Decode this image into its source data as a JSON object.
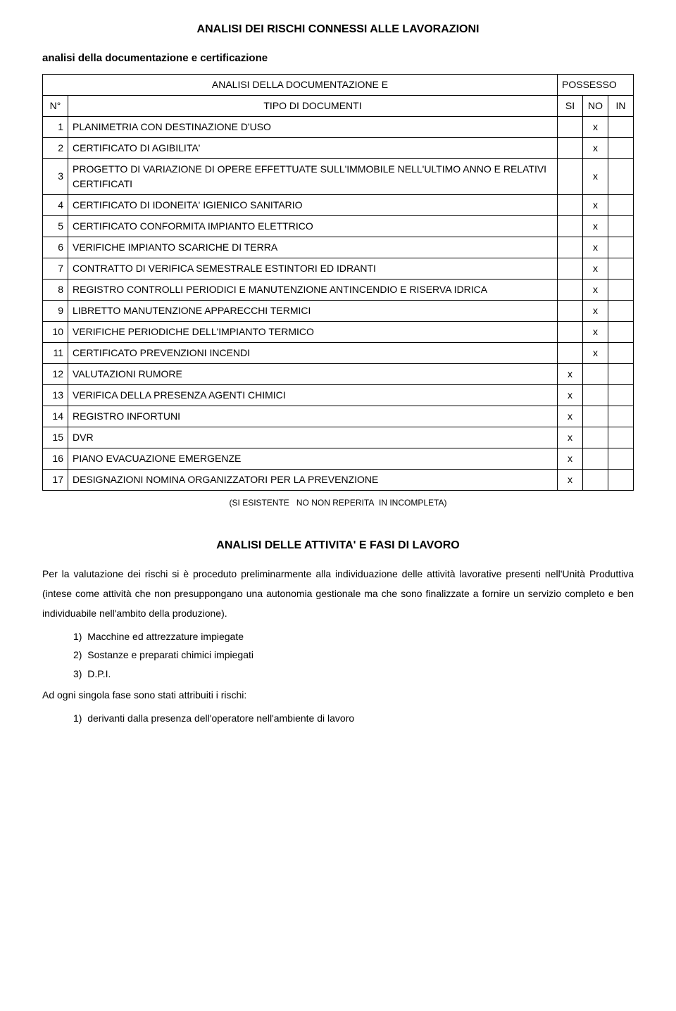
{
  "main_title": "ANALISI DEI RISCHI CONNESSI ALLE LAVORAZIONI",
  "subtitle": "analisi della documentazione e certificazione",
  "table": {
    "header_analisi": "ANALISI DELLA DOCUMENTAZIONE E",
    "header_possesso": "POSSESSO",
    "header_n": "N°",
    "header_tipo": "TIPO DI DOCUMENTI",
    "header_si": "SI",
    "header_no": "NO",
    "header_in": "IN",
    "rows": [
      {
        "n": "1",
        "desc": "PLANIMETRIA CON DESTINAZIONE D'USO",
        "si": "",
        "no": "x",
        "in": ""
      },
      {
        "n": "2",
        "desc": "CERTIFICATO DI AGIBILITA'",
        "si": "",
        "no": "x",
        "in": ""
      },
      {
        "n": "3",
        "desc": "PROGETTO DI VARIAZIONE DI OPERE EFFETTUATE SULL'IMMOBILE NELL'ULTIMO ANNO E RELATIVI CERTIFICATI",
        "si": "",
        "no": "x",
        "in": ""
      },
      {
        "n": "4",
        "desc": "CERTIFICATO DI IDONEITA' IGIENICO SANITARIO",
        "si": "",
        "no": "x",
        "in": ""
      },
      {
        "n": "5",
        "desc": "CERTIFICATO CONFORMITA IMPIANTO ELETTRICO",
        "si": "",
        "no": "x",
        "in": ""
      },
      {
        "n": "6",
        "desc": "VERIFICHE IMPIANTO SCARICHE DI TERRA",
        "si": "",
        "no": "x",
        "in": ""
      },
      {
        "n": "7",
        "desc": "CONTRATTO DI VERIFICA SEMESTRALE ESTINTORI ED IDRANTI",
        "si": "",
        "no": "x",
        "in": ""
      },
      {
        "n": "8",
        "desc": "REGISTRO CONTROLLI PERIODICI E MANUTENZIONE ANTINCENDIO E RISERVA IDRICA",
        "si": "",
        "no": "x",
        "in": ""
      },
      {
        "n": "9",
        "desc": "LIBRETTO MANUTENZIONE APPARECCHI TERMICI",
        "si": "",
        "no": "x",
        "in": ""
      },
      {
        "n": "10",
        "desc": "VERIFICHE PERIODICHE DELL'IMPIANTO TERMICO",
        "si": "",
        "no": "x",
        "in": ""
      },
      {
        "n": "11",
        "desc": "CERTIFICATO PREVENZIONI INCENDI",
        "si": "",
        "no": "x",
        "in": ""
      },
      {
        "n": "12",
        "desc": "VALUTAZIONI RUMORE",
        "si": "x",
        "no": "",
        "in": ""
      },
      {
        "n": "13",
        "desc": "VERIFICA DELLA PRESENZA AGENTI CHIMICI",
        "si": "x",
        "no": "",
        "in": ""
      },
      {
        "n": "14",
        "desc": "REGISTRO INFORTUNI",
        "si": "x",
        "no": "",
        "in": ""
      },
      {
        "n": "15",
        "desc": "DVR",
        "si": "x",
        "no": "",
        "in": ""
      },
      {
        "n": "16",
        "desc": "PIANO EVACUAZIONE EMERGENZE",
        "si": "x",
        "no": "",
        "in": ""
      },
      {
        "n": "17",
        "desc": "DESIGNAZIONI NOMINA ORGANIZZATORI PER LA PREVENZIONE",
        "si": "x",
        "no": "",
        "in": ""
      }
    ]
  },
  "legend": "(SI ESISTENTE   NO NON REPERITA  IN INCOMPLETA)",
  "section_title": "ANALISI DELLE ATTIVITA' E FASI DI LAVORO",
  "paragraph": "Per la valutazione dei rischi si è proceduto preliminarmente alla individuazione delle attività lavorative presenti nell'Unità Produttiva (intese come attività che non presuppongano una autonomia gestionale ma che sono finalizzate a fornire un servizio completo e ben individuabile nell'ambito della produzione).",
  "list1": [
    "1)  Macchine ed attrezzature impiegate",
    "2)  Sostanze e preparati chimici impiegati",
    "3)  D.P.I."
  ],
  "line_after_list": "Ad ogni singola fase sono stati attribuiti i rischi:",
  "list2": [
    "1)  derivanti dalla presenza dell'operatore nell'ambiente di lavoro"
  ]
}
